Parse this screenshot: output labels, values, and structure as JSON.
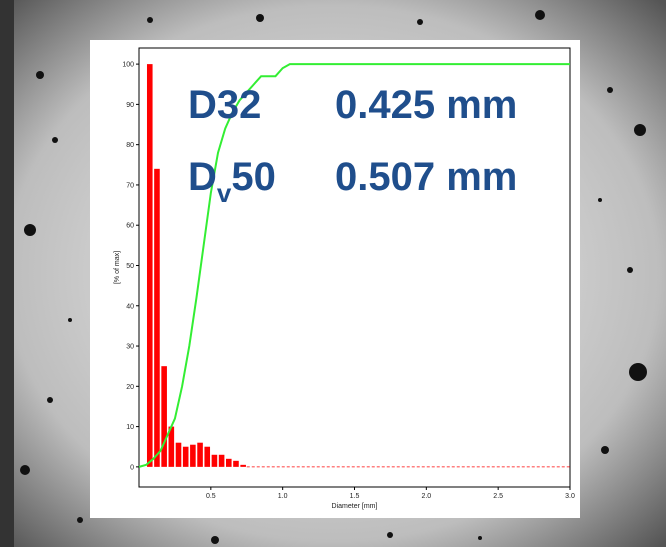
{
  "chart_data": {
    "type": "histogram",
    "xlabel": "Diameter [mm]",
    "ylabel": "[% of max]",
    "bins": [
      0.05,
      0.1,
      0.15,
      0.2,
      0.25,
      0.3,
      0.35,
      0.4,
      0.45,
      0.5,
      0.55,
      0.6,
      0.65,
      0.7,
      0.75
    ],
    "values": [
      100,
      74,
      25,
      10,
      6,
      5,
      5.5,
      6,
      5,
      3,
      3,
      2,
      1.5,
      0.5
    ],
    "color": "#ff0000",
    "cumulative": {
      "x": [
        0.0,
        0.05,
        0.1,
        0.15,
        0.2,
        0.25,
        0.3,
        0.35,
        0.4,
        0.45,
        0.5,
        0.55,
        0.6,
        0.65,
        0.7,
        0.75,
        0.8,
        0.85,
        0.95,
        1.0,
        1.05,
        1.1,
        3.0
      ],
      "values": [
        0,
        0.5,
        2,
        4,
        8,
        12,
        20,
        30,
        42,
        55,
        68,
        78,
        84,
        88,
        91,
        93,
        95,
        97,
        97,
        99,
        100,
        100,
        100
      ],
      "color": "#33ee33"
    },
    "xlim": [
      0,
      3.0
    ],
    "ylim": [
      -5,
      104
    ],
    "xticks": [
      0.5,
      {
        "value": 1,
        "label": "1.0"
      },
      1.5,
      {
        "value": 2,
        "label": "2.0"
      },
      2.5,
      {
        "value": 3,
        "label": "3.0"
      }
    ],
    "yticks": [
      0,
      10,
      20,
      30,
      40,
      50,
      60,
      70,
      80,
      90,
      100
    ],
    "annotations": [
      {
        "label": "D32",
        "value": "0.425 mm"
      },
      {
        "label": "D",
        "subscript": "v",
        "suffix": "50",
        "value": "0.507 mm"
      }
    ]
  }
}
